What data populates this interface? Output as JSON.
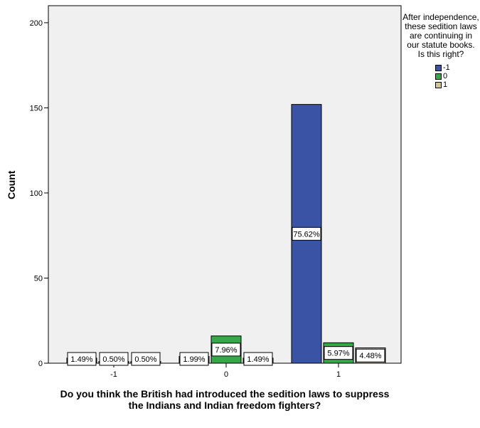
{
  "chart_data": {
    "type": "bar",
    "xlabel": "Do you think the British had introduced the sedition laws to suppress the Indians and Indian freedom fighters?",
    "ylabel": "Count",
    "categories": [
      "-1",
      "0",
      "1"
    ],
    "ylim": [
      0,
      210
    ],
    "yticks": [
      0,
      50,
      100,
      150,
      200
    ],
    "grid": false,
    "legend_position": "right",
    "legend_title": "After independence, these sedition laws are continuing in our statute books. Is this right?",
    "series": [
      {
        "name": "-1",
        "color": "#3a53a4",
        "values": [
          3,
          4,
          152
        ],
        "labels": [
          "1.49%",
          "1.99%",
          "75.62%"
        ]
      },
      {
        "name": "0",
        "color": "#37a84a",
        "values": [
          1,
          16,
          12
        ],
        "labels": [
          "0.50%",
          "7.96%",
          "5.97%"
        ]
      },
      {
        "name": "1",
        "color": "#d2c591",
        "values": [
          1,
          3,
          9
        ],
        "labels": [
          "0.50%",
          "1.49%",
          "4.48%"
        ]
      }
    ]
  }
}
